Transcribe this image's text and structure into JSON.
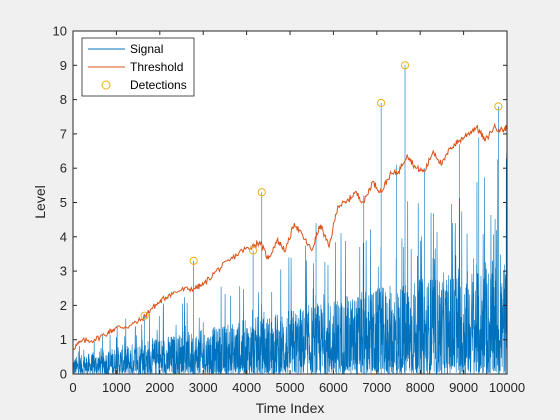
{
  "chart_data": {
    "type": "line",
    "title": "",
    "xlabel": "Time Index",
    "ylabel": "Level",
    "xlim": [
      0,
      10000
    ],
    "ylim": [
      0,
      10
    ],
    "xticks": [
      0,
      1000,
      2000,
      3000,
      4000,
      5000,
      6000,
      7000,
      8000,
      9000,
      10000
    ],
    "yticks": [
      0,
      1,
      2,
      3,
      4,
      5,
      6,
      7,
      8,
      9,
      10
    ],
    "xtick_labels": [
      "0",
      "1000",
      "2000",
      "3000",
      "4000",
      "5000",
      "6000",
      "7000",
      "8000",
      "9000",
      "10000"
    ],
    "ytick_labels": [
      "0",
      "1",
      "2",
      "3",
      "4",
      "5",
      "6",
      "7",
      "8",
      "9",
      "10"
    ],
    "grid": false,
    "legend_position": "top-left",
    "colors": {
      "signal": "#0072BD",
      "threshold": "#D95319",
      "detections": "#EDB120",
      "axes_bg": "#ffffff",
      "figure_bg": "#f0f0f0"
    },
    "series": [
      {
        "name": "Signal",
        "style": "line",
        "description_of_shape": "dense noisy signal rising from about 0-0.5 at start to about 0-3.5 near the end",
        "envelope_x": [
          0,
          1000,
          2000,
          3000,
          4000,
          5000,
          6000,
          7000,
          8000,
          9000,
          10000
        ],
        "envelope_typical_max": [
          0.5,
          0.8,
          1.1,
          1.3,
          1.6,
          1.9,
          2.2,
          2.5,
          2.8,
          3.1,
          3.4
        ],
        "spikes": [
          {
            "x": 1650,
            "y": 1.7
          },
          {
            "x": 2780,
            "y": 3.3
          },
          {
            "x": 4150,
            "y": 3.6
          },
          {
            "x": 4350,
            "y": 5.3
          },
          {
            "x": 5600,
            "y": 4.4
          },
          {
            "x": 6700,
            "y": 5.2
          },
          {
            "x": 7100,
            "y": 7.9
          },
          {
            "x": 7450,
            "y": 6.1
          },
          {
            "x": 7650,
            "y": 9.0
          },
          {
            "x": 8100,
            "y": 6.0
          },
          {
            "x": 8900,
            "y": 6.7
          },
          {
            "x": 9350,
            "y": 6.9
          },
          {
            "x": 9800,
            "y": 7.8
          }
        ]
      },
      {
        "name": "Threshold",
        "style": "line",
        "x": [
          0,
          200,
          500,
          800,
          1000,
          1300,
          1600,
          1800,
          2000,
          2200,
          2500,
          2800,
          3000,
          3300,
          3600,
          3900,
          4100,
          4300,
          4500,
          4700,
          4900,
          5100,
          5300,
          5500,
          5700,
          5900,
          6100,
          6300,
          6500,
          6700,
          6900,
          7100,
          7300,
          7500,
          7700,
          7900,
          8100,
          8300,
          8500,
          8700,
          8900,
          9100,
          9300,
          9500,
          9700,
          9900,
          10000
        ],
        "y": [
          0.75,
          0.95,
          1.0,
          1.2,
          1.35,
          1.4,
          1.6,
          1.9,
          2.1,
          2.3,
          2.45,
          2.5,
          2.6,
          3.0,
          3.3,
          3.6,
          3.7,
          3.85,
          3.35,
          3.9,
          3.6,
          4.4,
          4.0,
          3.6,
          4.35,
          3.7,
          4.9,
          5.0,
          5.3,
          5.0,
          5.6,
          5.3,
          5.8,
          5.9,
          6.4,
          6.0,
          5.9,
          6.5,
          6.1,
          6.6,
          6.8,
          7.0,
          7.2,
          6.8,
          7.2,
          7.1,
          7.2
        ]
      },
      {
        "name": "Detections",
        "style": "marker",
        "marker": "circle",
        "x": [
          1650,
          2780,
          4150,
          4350,
          7100,
          7650,
          9800
        ],
        "y": [
          1.7,
          3.3,
          3.6,
          5.3,
          7.9,
          9.0,
          7.8
        ]
      }
    ]
  }
}
